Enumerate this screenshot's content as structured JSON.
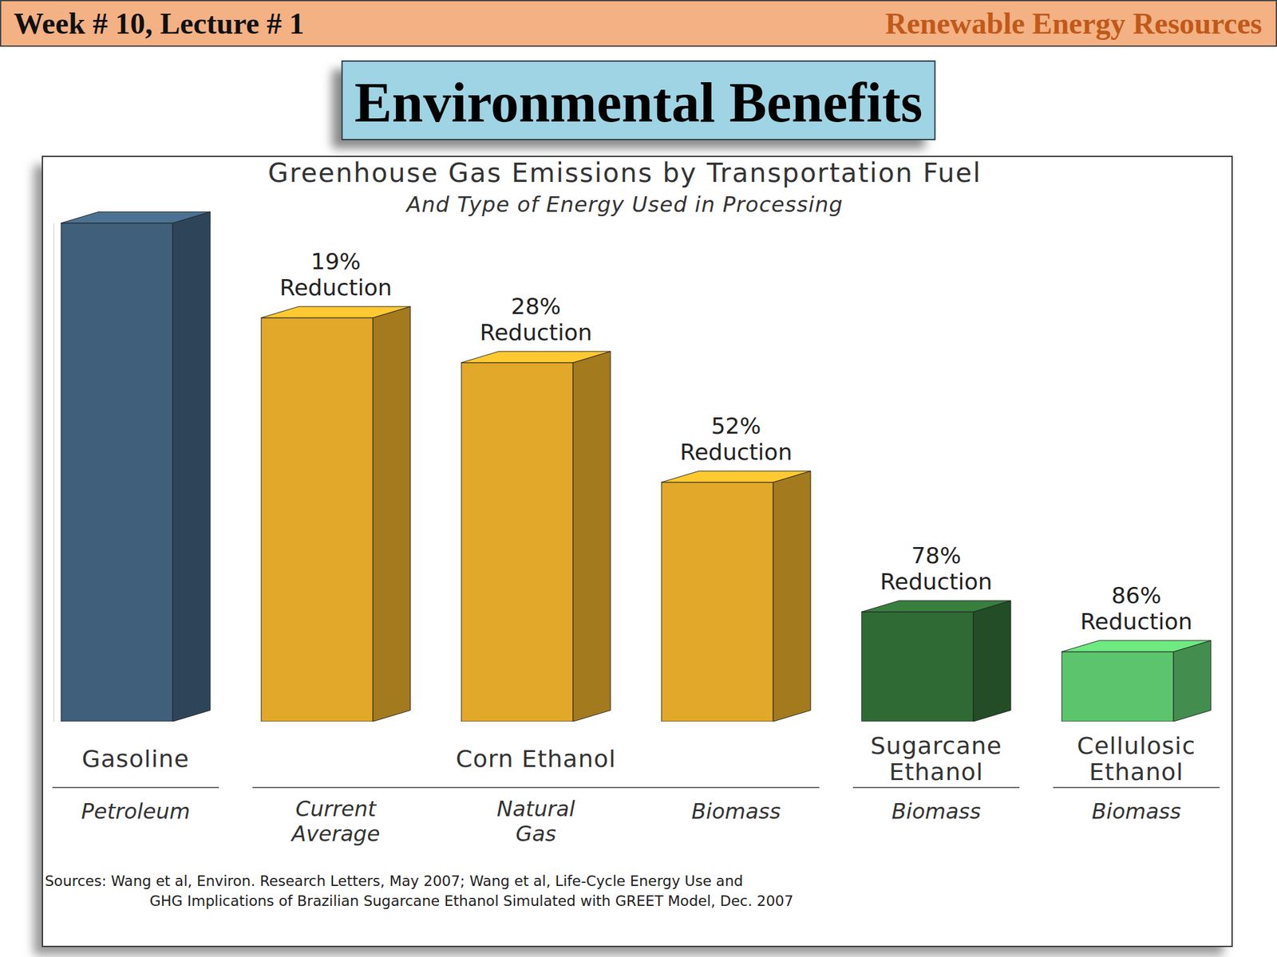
{
  "slide": {
    "header_left": "Week # 10, Lecture # 1",
    "header_right": "Renewable Energy Resources",
    "title": "Environmental Benefits"
  },
  "chart_data": {
    "type": "bar",
    "title": "Greenhouse Gas Emissions by Transportation Fuel",
    "subtitle": "And Type of Energy Used in Processing",
    "categories": [
      "Petroleum",
      "Current Average",
      "Natural Gas",
      "Biomass",
      "Biomass",
      "Biomass"
    ],
    "groups": [
      {
        "label": "Gasoline",
        "count": 1
      },
      {
        "label": "Corn Ethanol",
        "count": 3
      },
      {
        "label": "Sugarcane Ethanol",
        "count": 1
      },
      {
        "label": "Cellulosic Ethanol",
        "count": 1
      }
    ],
    "values": [
      100,
      81,
      72,
      48,
      22,
      14
    ],
    "colors": [
      "#3f5f7a",
      "#e2a82a",
      "#e2a82a",
      "#e2a82a",
      "#2f6a34",
      "#5cc46c"
    ],
    "annotations": [
      null,
      "19% Reduction",
      "28% Reduction",
      "52% Reduction",
      "78% Reduction",
      "86% Reduction"
    ],
    "ylim": [
      0,
      100
    ],
    "grid": false,
    "tick_labels": false,
    "sources": [
      "Sources: Wang et al, Environ. Research Letters, May 2007;  Wang et al, Life-Cycle Energy Use and",
      "GHG Implications of Brazilian Sugarcane Ethanol Simulated with GREET Model, Dec. 2007"
    ]
  }
}
